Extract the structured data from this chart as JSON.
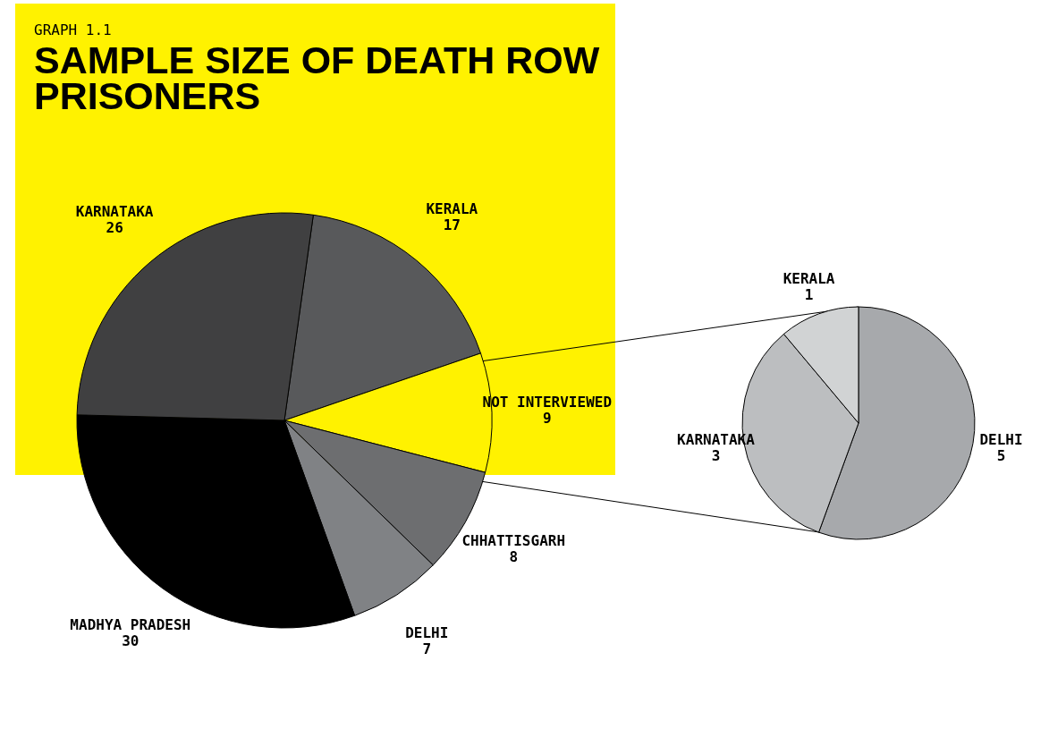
{
  "chart_data": [
    {
      "type": "pie",
      "title": "SAMPLE SIZE OF DEATH ROW PRISONERS",
      "annotations": [
        "GRAPH 1.1"
      ],
      "categories": [
        "KERALA",
        "NOT INTERVIEWED",
        "CHHATTISGARH",
        "DELHI",
        "MADHYA PRADESH",
        "KARNATAKA"
      ],
      "values": [
        17,
        9,
        8,
        7,
        30,
        26
      ],
      "colors": [
        "#58595b",
        "#fff200",
        "#6d6e70",
        "#808285",
        "#000000",
        "#404041"
      ],
      "data_labels": true
    },
    {
      "type": "pie",
      "categories": [
        "DELHI",
        "KARNATAKA",
        "KERALA"
      ],
      "values": [
        5,
        3,
        1
      ],
      "colors": [
        "#a7a9ac",
        "#bcbec0",
        "#d1d3d4"
      ],
      "data_labels": true
    }
  ]
}
